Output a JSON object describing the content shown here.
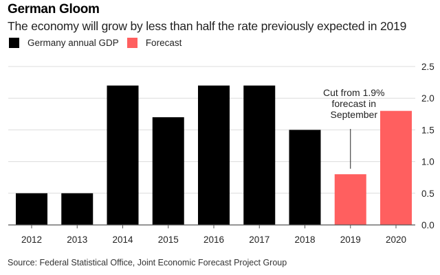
{
  "chart_data": {
    "type": "bar",
    "title": "German Gloom",
    "subtitle": "The economy will grow by less than half the rate previously expected in 2019",
    "categories": [
      "2012",
      "2013",
      "2014",
      "2015",
      "2016",
      "2017",
      "2018",
      "2019",
      "2020"
    ],
    "values": [
      0.5,
      0.5,
      2.2,
      1.7,
      2.2,
      2.2,
      1.5,
      0.8,
      1.8
    ],
    "series_by_bar": [
      "gdp",
      "gdp",
      "gdp",
      "gdp",
      "gdp",
      "gdp",
      "gdp",
      "forecast",
      "forecast"
    ],
    "legend": [
      {
        "key": "gdp",
        "label": "Germany annual GDP",
        "color": "#000000"
      },
      {
        "key": "forecast",
        "label": "Forecast",
        "color": "#ff5f5f"
      }
    ],
    "legend_placement": "top-left",
    "ylim": [
      0,
      2.5
    ],
    "yticks": [
      "0.0",
      "0.5",
      "1.0",
      "1.5",
      "2.0",
      "2.5"
    ],
    "y_axis_side": "right",
    "grid": true,
    "xlabel": "",
    "ylabel": "",
    "annotation": {
      "category": "2019",
      "lines": [
        "Cut from 1.9%",
        "forecast in",
        "September"
      ]
    },
    "source": "Source: Federal Statistical Office, Joint Economic Forecast Project Group"
  }
}
